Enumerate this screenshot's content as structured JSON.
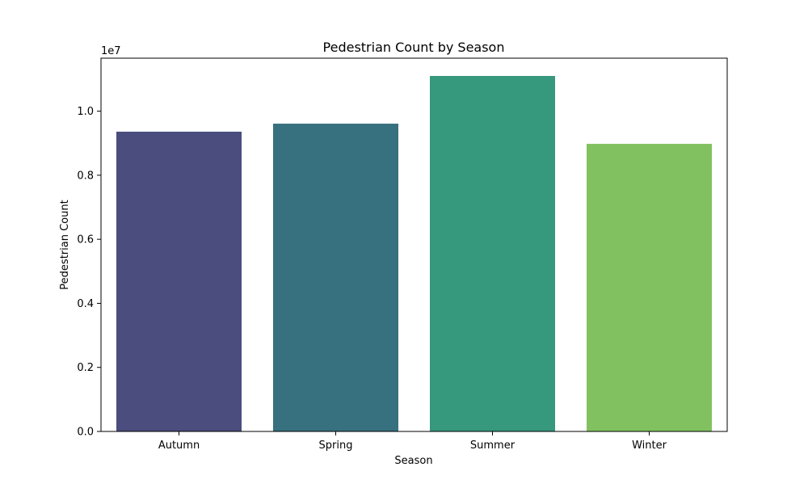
{
  "chart_data": {
    "type": "bar",
    "title": "Pedestrian Count by Season",
    "xlabel": "Season",
    "ylabel": "Pedestrian Count",
    "categories": [
      "Autumn",
      "Spring",
      "Summer",
      "Winter"
    ],
    "values": [
      9360000,
      9610000,
      11100000,
      8980000
    ],
    "colors": [
      "#4a4d7e",
      "#37707f",
      "#36987d",
      "#82c160"
    ],
    "ylim": [
      0,
      11655000
    ],
    "y_ticks": [
      0,
      2000000,
      4000000,
      6000000,
      8000000,
      10000000
    ],
    "y_tick_labels": [
      "0.0",
      "0.2",
      "0.4",
      "0.6",
      "0.8",
      "1.0"
    ],
    "y_offset_text": "1e7",
    "grid": false,
    "legend": "none"
  }
}
